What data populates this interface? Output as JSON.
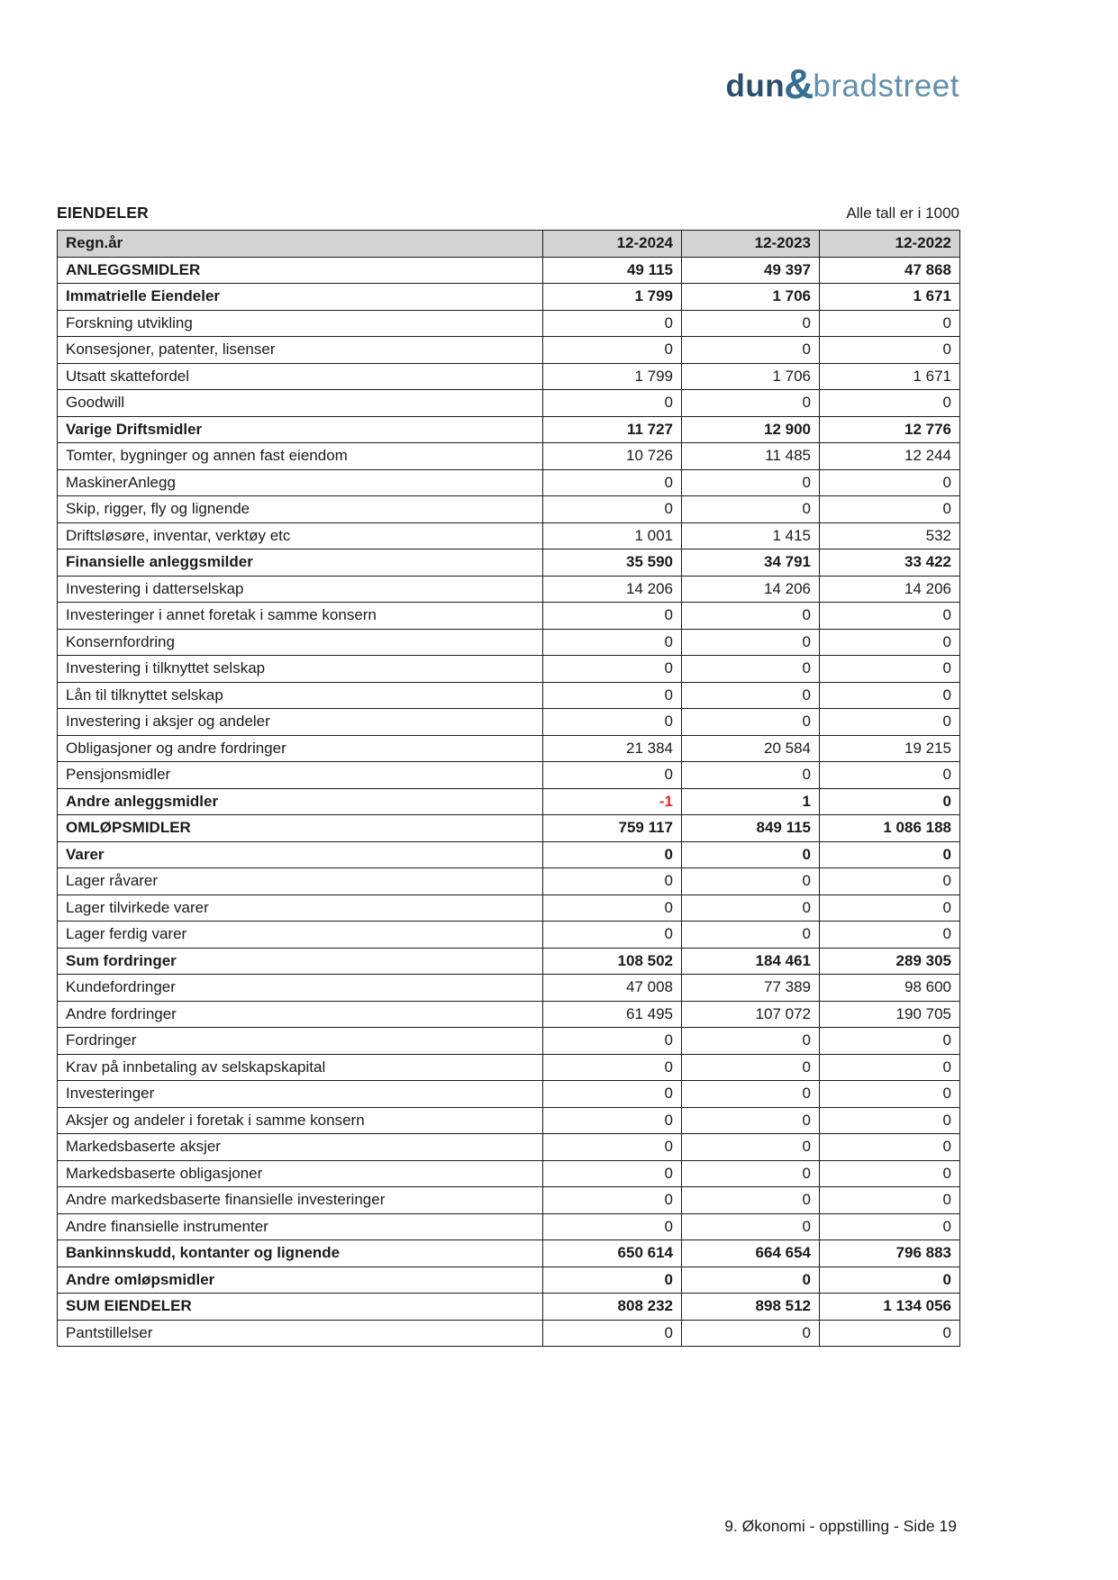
{
  "logo": {
    "dun": "dun",
    "amp": "&",
    "bradstreet": "bradstreet"
  },
  "header": {
    "title": "EIENDELER",
    "units_note": "Alle tall er i 1000"
  },
  "colors": {
    "logo_dark_blue": "#2b4e6b",
    "logo_light_blue": "#618fac",
    "table_header_bg": "#d3d3d3",
    "table_border": "#1b1b1b",
    "negative_value_red": "#e02b20"
  },
  "table": {
    "header": {
      "label": "Regn.år",
      "columns": [
        "12-2024",
        "12-2023",
        "12-2022"
      ]
    },
    "rows": [
      {
        "label": "ANLEGGSMIDLER",
        "bold": true,
        "values": [
          "49 115",
          "49 397",
          "47 868"
        ]
      },
      {
        "label": "Immatrielle Eiendeler",
        "bold": true,
        "values": [
          "1 799",
          "1 706",
          "1 671"
        ]
      },
      {
        "label": "Forskning utvikling",
        "bold": false,
        "values": [
          "0",
          "0",
          "0"
        ]
      },
      {
        "label": "Konsesjoner, patenter, lisenser",
        "bold": false,
        "values": [
          "0",
          "0",
          "0"
        ]
      },
      {
        "label": "Utsatt skattefordel",
        "bold": false,
        "values": [
          "1 799",
          "1 706",
          "1 671"
        ]
      },
      {
        "label": "Goodwill",
        "bold": false,
        "values": [
          "0",
          "0",
          "0"
        ]
      },
      {
        "label": "Varige Driftsmidler",
        "bold": true,
        "values": [
          "11 727",
          "12 900",
          "12 776"
        ]
      },
      {
        "label": "Tomter, bygninger og annen fast eiendom",
        "bold": false,
        "values": [
          "10 726",
          "11 485",
          "12 244"
        ]
      },
      {
        "label": "MaskinerAnlegg",
        "bold": false,
        "values": [
          "0",
          "0",
          "0"
        ]
      },
      {
        "label": "Skip, rigger, fly og lignende",
        "bold": false,
        "values": [
          "0",
          "0",
          "0"
        ]
      },
      {
        "label": "Driftsløsøre, inventar, verktøy etc",
        "bold": false,
        "values": [
          "1 001",
          "1 415",
          "532"
        ]
      },
      {
        "label": "Finansielle anleggsmilder",
        "bold": true,
        "values": [
          "35 590",
          "34 791",
          "33 422"
        ]
      },
      {
        "label": "Investering i datterselskap",
        "bold": false,
        "values": [
          "14 206",
          "14 206",
          "14 206"
        ]
      },
      {
        "label": "Investeringer i annet foretak i samme konsern",
        "bold": false,
        "values": [
          "0",
          "0",
          "0"
        ]
      },
      {
        "label": "Konsernfordring",
        "bold": false,
        "values": [
          "0",
          "0",
          "0"
        ]
      },
      {
        "label": "Investering i tilknyttet selskap",
        "bold": false,
        "values": [
          "0",
          "0",
          "0"
        ]
      },
      {
        "label": "Lån til tilknyttet selskap",
        "bold": false,
        "values": [
          "0",
          "0",
          "0"
        ]
      },
      {
        "label": "Investering i aksjer og andeler",
        "bold": false,
        "values": [
          "0",
          "0",
          "0"
        ]
      },
      {
        "label": "Obligasjoner og andre fordringer",
        "bold": false,
        "values": [
          "21 384",
          "20 584",
          "19 215"
        ]
      },
      {
        "label": "Pensjonsmidler",
        "bold": false,
        "values": [
          "0",
          "0",
          "0"
        ]
      },
      {
        "label": "Andre anleggsmidler",
        "bold": true,
        "values": [
          "-1",
          "1",
          "0"
        ]
      },
      {
        "label": "OMLØPSMIDLER",
        "bold": true,
        "values": [
          "759 117",
          "849 115",
          "1 086 188"
        ]
      },
      {
        "label": "Varer",
        "bold": true,
        "values": [
          "0",
          "0",
          "0"
        ]
      },
      {
        "label": "Lager råvarer",
        "bold": false,
        "values": [
          "0",
          "0",
          "0"
        ]
      },
      {
        "label": "Lager tilvirkede varer",
        "bold": false,
        "values": [
          "0",
          "0",
          "0"
        ]
      },
      {
        "label": "Lager ferdig varer",
        "bold": false,
        "values": [
          "0",
          "0",
          "0"
        ]
      },
      {
        "label": "Sum fordringer",
        "bold": true,
        "values": [
          "108 502",
          "184 461",
          "289 305"
        ]
      },
      {
        "label": "Kundefordringer",
        "bold": false,
        "values": [
          "47 008",
          "77 389",
          "98 600"
        ]
      },
      {
        "label": "Andre fordringer",
        "bold": false,
        "values": [
          "61 495",
          "107 072",
          "190 705"
        ]
      },
      {
        "label": "Fordringer",
        "bold": false,
        "values": [
          "0",
          "0",
          "0"
        ]
      },
      {
        "label": "Krav på innbetaling av selskapskapital",
        "bold": false,
        "values": [
          "0",
          "0",
          "0"
        ]
      },
      {
        "label": "Investeringer",
        "bold": false,
        "values": [
          "0",
          "0",
          "0"
        ]
      },
      {
        "label": "Aksjer og andeler i foretak i samme konsern",
        "bold": false,
        "values": [
          "0",
          "0",
          "0"
        ]
      },
      {
        "label": "Markedsbaserte aksjer",
        "bold": false,
        "values": [
          "0",
          "0",
          "0"
        ]
      },
      {
        "label": "Markedsbaserte obligasjoner",
        "bold": false,
        "values": [
          "0",
          "0",
          "0"
        ]
      },
      {
        "label": "Andre markedsbaserte finansielle investeringer",
        "bold": false,
        "values": [
          "0",
          "0",
          "0"
        ]
      },
      {
        "label": "Andre finansielle instrumenter",
        "bold": false,
        "values": [
          "0",
          "0",
          "0"
        ]
      },
      {
        "label": "Bankinnskudd, kontanter og lignende",
        "bold": true,
        "values": [
          "650 614",
          "664 654",
          "796 883"
        ]
      },
      {
        "label": "Andre omløpsmidler",
        "bold": true,
        "values": [
          "0",
          "0",
          "0"
        ]
      },
      {
        "label": "SUM EIENDELER",
        "bold": true,
        "values": [
          "808 232",
          "898 512",
          "1 134 056"
        ]
      },
      {
        "label": "Pantstillelser",
        "bold": false,
        "values": [
          "0",
          "0",
          "0"
        ]
      }
    ]
  },
  "footer": {
    "text": "9. Økonomi - oppstilling - Side 19"
  }
}
